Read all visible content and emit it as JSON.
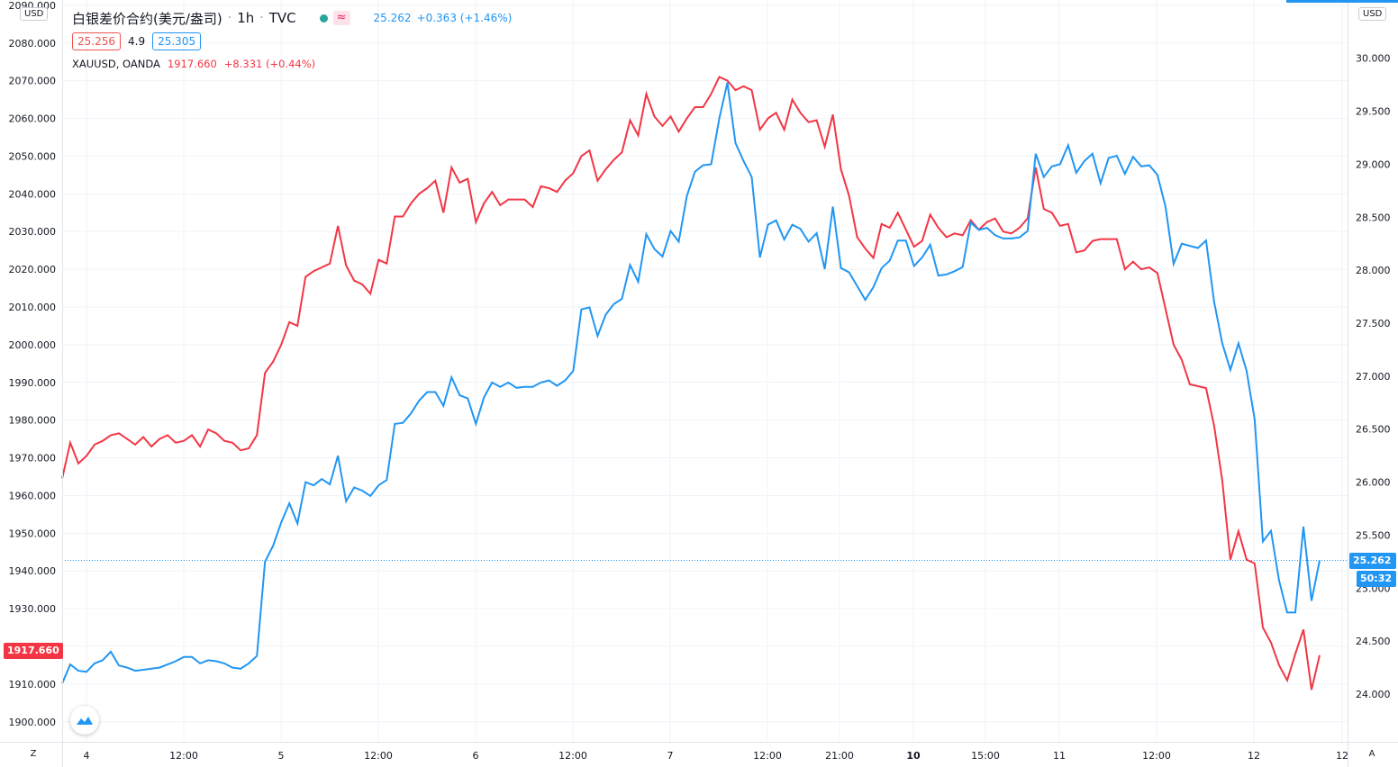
{
  "header": {
    "title": "白银差价合约(美元/盎司)",
    "interval": "1h",
    "source": "TVC",
    "separator": "·",
    "wave_label": "≈",
    "last": "25.262",
    "change": "+0.363 (+1.46%)",
    "bid": "25.256",
    "spread": "4.9",
    "ask": "25.305",
    "compare_symbol": "XAUUSD, OANDA",
    "compare_last": "1917.660",
    "compare_change": "+8.331 (+0.44%)"
  },
  "axes": {
    "left_unit": "USD",
    "right_unit": "USD",
    "left_ticks": [
      "2090.000",
      "2080.000",
      "2070.000",
      "2060.000",
      "2050.000",
      "2040.000",
      "2030.000",
      "2020.000",
      "2010.000",
      "2000.000",
      "1990.000",
      "1980.000",
      "1970.000",
      "1960.000",
      "1950.000",
      "1940.000",
      "1930.000",
      "1920.000",
      "1910.000",
      "1900.000"
    ],
    "right_ticks": [
      "30.000",
      "29.500",
      "29.000",
      "28.500",
      "28.000",
      "27.500",
      "27.000",
      "26.500",
      "26.000",
      "25.500",
      "25.000",
      "24.500",
      "24.000"
    ],
    "x_ticks": [
      {
        "label": "4",
        "bold": false
      },
      {
        "label": "12:00",
        "bold": false
      },
      {
        "label": "5",
        "bold": false
      },
      {
        "label": "12:00",
        "bold": false
      },
      {
        "label": "6",
        "bold": false
      },
      {
        "label": "12:00",
        "bold": false
      },
      {
        "label": "7",
        "bold": false
      },
      {
        "label": "12:00",
        "bold": false
      },
      {
        "label": "21:00",
        "bold": false
      },
      {
        "label": "10",
        "bold": true
      },
      {
        "label": "15:00",
        "bold": false
      },
      {
        "label": "11",
        "bold": false
      },
      {
        "label": "12:00",
        "bold": false
      },
      {
        "label": "12",
        "bold": false
      },
      {
        "label": "12",
        "bold": false
      }
    ],
    "corner_left": "Z",
    "corner_right": "A"
  },
  "tags": {
    "left_price": "1917.660",
    "right_price": "25.262",
    "right_timer": "50:32"
  },
  "chart_data": {
    "type": "line",
    "left_ylim": [
      1894.7,
      2091.4
    ],
    "right_ylim": [
      23.55,
      30.55
    ],
    "grid": true,
    "last_price_line": 25.262,
    "series": [
      {
        "name": "XAUUSD, OANDA",
        "axis": "left",
        "color": "#f23645",
        "values": [
          1964.5,
          1974.0,
          1968.5,
          1970.5,
          1973.5,
          1974.5,
          1976.0,
          1976.5,
          1975.0,
          1973.5,
          1975.5,
          1973.0,
          1975.0,
          1976.0,
          1974.0,
          1974.5,
          1976.0,
          1973.0,
          1977.5,
          1976.5,
          1974.5,
          1974.0,
          1972.0,
          1972.5,
          1976.0,
          1992.5,
          1995.5,
          2000.0,
          2006.0,
          2005.0,
          2018.0,
          2019.5,
          2020.5,
          2021.5,
          2031.5,
          2021.0,
          2017.0,
          2016.0,
          2013.5,
          2022.5,
          2021.5,
          2034.0,
          2034.0,
          2037.5,
          2040.0,
          2041.5,
          2043.5,
          2035.0,
          2047.0,
          2043.0,
          2044.0,
          2032.5,
          2037.5,
          2040.5,
          2037.0,
          2038.5,
          2038.5,
          2038.5,
          2036.5,
          2042.0,
          2041.5,
          2040.5,
          2043.5,
          2045.5,
          2050.0,
          2051.5,
          2043.5,
          2046.5,
          2049.0,
          2051.0,
          2059.5,
          2055.5,
          2066.5,
          2060.5,
          2058.0,
          2060.5,
          2056.5,
          2060.0,
          2063.0,
          2063.0,
          2066.5,
          2071.0,
          2070.0,
          2067.5,
          2068.5,
          2067.5,
          2057.0,
          2060.0,
          2061.5,
          2057.0,
          2065.0,
          2061.5,
          2059.0,
          2059.5,
          2052.5,
          2061.0,
          2046.5,
          2039.5,
          2028.5,
          2025.5,
          2023.0,
          2032.0,
          2031.0,
          2035.0,
          2030.5,
          2026.0,
          2027.5,
          2034.5,
          2031.0,
          2028.5,
          2029.5,
          2029.0,
          2033.0,
          2030.5,
          2032.5,
          2033.5,
          2030.0,
          2029.5,
          2031.0,
          2033.5,
          2047.0,
          2036.0,
          2035.0,
          2031.5,
          2032.0,
          2024.5,
          2025.0,
          2027.5,
          2028.0,
          2028.0,
          2028.0,
          2020.0,
          2022.0,
          2020.0,
          2020.5,
          2019.0,
          2009.5,
          2000.0,
          1996.0,
          1989.5,
          1989.0,
          1988.5,
          1978.5,
          1964.0,
          1943.0,
          1950.5,
          1943.0,
          1942.0,
          1925.0,
          1921.0,
          1915.0,
          1911.0,
          1918.0,
          1924.5,
          1908.5,
          1917.66
        ]
      },
      {
        "name": "白银差价合约(美元/盎司)",
        "axis": "right",
        "color": "#2196f3",
        "values": [
          24.1,
          24.28,
          24.22,
          24.21,
          24.29,
          24.32,
          24.4,
          24.27,
          24.25,
          24.22,
          24.23,
          24.24,
          24.25,
          24.28,
          24.31,
          24.35,
          24.35,
          24.29,
          24.32,
          24.31,
          24.29,
          24.25,
          24.24,
          24.29,
          24.36,
          25.25,
          25.4,
          25.62,
          25.8,
          25.61,
          26.0,
          25.97,
          26.03,
          25.98,
          26.25,
          25.82,
          25.95,
          25.92,
          25.87,
          25.97,
          26.02,
          26.55,
          26.56,
          26.65,
          26.77,
          26.85,
          26.85,
          26.72,
          26.99,
          26.82,
          26.79,
          26.55,
          26.8,
          26.94,
          26.9,
          26.94,
          26.89,
          26.9,
          26.9,
          26.94,
          26.96,
          26.91,
          26.96,
          27.05,
          27.63,
          27.65,
          27.38,
          27.58,
          27.68,
          27.73,
          28.05,
          27.89,
          28.34,
          28.2,
          28.13,
          28.37,
          28.27,
          28.7,
          28.93,
          28.99,
          29.0,
          29.43,
          29.77,
          29.2,
          29.03,
          28.88,
          28.12,
          28.43,
          28.47,
          28.29,
          28.43,
          28.39,
          28.27,
          28.35,
          28.01,
          28.6,
          28.02,
          27.98,
          27.85,
          27.72,
          27.84,
          28.02,
          28.09,
          28.28,
          28.28,
          28.04,
          28.12,
          28.24,
          27.95,
          27.96,
          27.99,
          28.03,
          28.45,
          28.38,
          28.4,
          28.33,
          28.3,
          28.3,
          28.31,
          28.37,
          29.1,
          28.88,
          28.98,
          29.0,
          29.18,
          28.92,
          29.03,
          29.1,
          28.82,
          29.06,
          29.08,
          28.91,
          29.07,
          28.98,
          28.99,
          28.9,
          28.6,
          28.06,
          28.25,
          28.23,
          28.21,
          28.28,
          27.7,
          27.31,
          27.06,
          27.31,
          27.05,
          26.59,
          25.44,
          25.54,
          25.07,
          24.77,
          24.77,
          25.58,
          24.88,
          25.262
        ]
      }
    ]
  }
}
